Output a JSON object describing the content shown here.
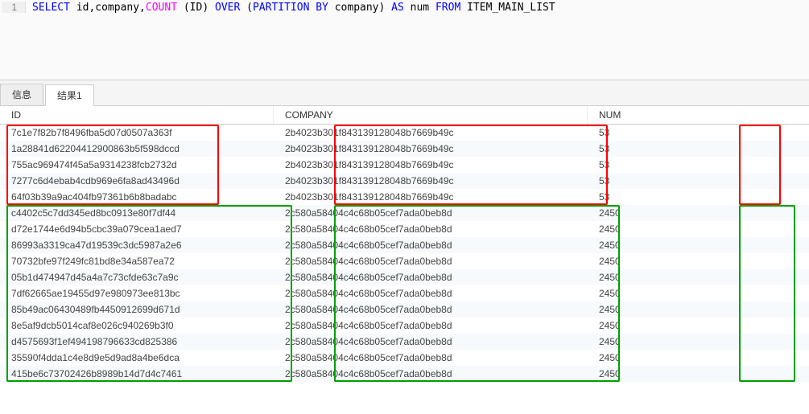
{
  "editor": {
    "line_number": "1",
    "tokens": [
      {
        "t": "SELECT",
        "c": "kw"
      },
      {
        "t": "  id,company,",
        "c": "ident"
      },
      {
        "t": "COUNT",
        "c": "func"
      },
      {
        "t": " (ID) ",
        "c": "ident"
      },
      {
        "t": "OVER",
        "c": "kw"
      },
      {
        "t": " (",
        "c": "ident"
      },
      {
        "t": "PARTITION BY",
        "c": "kw"
      },
      {
        "t": " company) ",
        "c": "ident"
      },
      {
        "t": "AS",
        "c": "kw"
      },
      {
        "t": " num ",
        "c": "ident"
      },
      {
        "t": "FROM",
        "c": "kw"
      },
      {
        "t": " ITEM_MAIN_LIST",
        "c": "ident"
      }
    ]
  },
  "tabs": {
    "items": [
      {
        "label": "信息",
        "active": false
      },
      {
        "label": "结果1",
        "active": true
      }
    ]
  },
  "grid": {
    "headers": {
      "id": "ID",
      "company": "COMPANY",
      "num": "NUM"
    },
    "rows": [
      {
        "id": "7c1e7f82b7f8496fba5d07d0507a363f",
        "company": "2b4023b301f843139128048b7669b49c",
        "num": "53"
      },
      {
        "id": "1a28841d62204412900863b5f598dccd",
        "company": "2b4023b301f843139128048b7669b49c",
        "num": "53"
      },
      {
        "id": "755ac969474f45a5a9314238fcb2732d",
        "company": "2b4023b301f843139128048b7669b49c",
        "num": "53"
      },
      {
        "id": "7277c6d4ebab4cdb969e6fa8ad43496d",
        "company": "2b4023b301f843139128048b7669b49c",
        "num": "53"
      },
      {
        "id": "64f03b39a9ac404fb97361b6b8badabc",
        "company": "2b4023b301f843139128048b7669b49c",
        "num": "53"
      },
      {
        "id": "c4402c5c7dd345ed8bc0913e80f7df44",
        "company": "2c580a58404c4c68b05cef7ada0beb8d",
        "num": "2450"
      },
      {
        "id": "d72e1744e6d94b5cbc39a079cea1aed7",
        "company": "2c580a58404c4c68b05cef7ada0beb8d",
        "num": "2450"
      },
      {
        "id": "86993a3319ca47d19539c3dc5987a2e6",
        "company": "2c580a58404c4c68b05cef7ada0beb8d",
        "num": "2450"
      },
      {
        "id": "70732bfe97f249fc81bd8e34a587ea72",
        "company": "2c580a58404c4c68b05cef7ada0beb8d",
        "num": "2450"
      },
      {
        "id": "05b1d474947d45a4a7c73cfde63c7a9c",
        "company": "2c580a58404c4c68b05cef7ada0beb8d",
        "num": "2450"
      },
      {
        "id": "7df62665ae19455d97e980973ee813bc",
        "company": "2c580a58404c4c68b05cef7ada0beb8d",
        "num": "2450"
      },
      {
        "id": "85b49ac06430489fb4450912699d671d",
        "company": "2c580a58404c4c68b05cef7ada0beb8d",
        "num": "2450"
      },
      {
        "id": "8e5af9dcb5014caf8e026c940269b3f0",
        "company": "2c580a58404c4c68b05cef7ada0beb8d",
        "num": "2450"
      },
      {
        "id": "d4575693f1ef494198796633cd825386",
        "company": "2c580a58404c4c68b05cef7ada0beb8d",
        "num": "2450"
      },
      {
        "id": "35590f4dda1c4e8d9e5d9ad8a4be6dca",
        "company": "2c580a58404c4c68b05cef7ada0beb8d",
        "num": "2450"
      },
      {
        "id": "415be6c73702426b8989b14d7d4c7461",
        "company": "2c580a58404c4c68b05cef7ada0beb8d",
        "num": "2450"
      }
    ],
    "alt_row_bg": "#f6fafd",
    "header_border": "#cccccc"
  },
  "annotations": {
    "red": {
      "color": "#ff0000",
      "rows_start": 0,
      "rows_end": 4
    },
    "green": {
      "color": "#00a000",
      "rows_start": 5,
      "rows_end": 15
    }
  }
}
